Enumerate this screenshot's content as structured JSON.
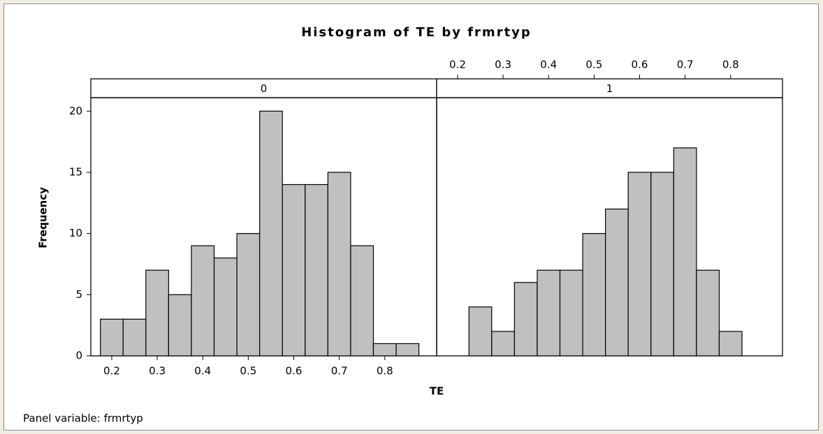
{
  "chart_data": {
    "type": "histogram",
    "title": "Histogram of TE by frmrtyp",
    "x_label": "TE",
    "y_label": "Frequency",
    "footnote": "Panel variable: frmrtyp",
    "bins": [
      0.175,
      0.225,
      0.275,
      0.325,
      0.375,
      0.425,
      0.475,
      0.525,
      0.575,
      0.625,
      0.675,
      0.725,
      0.775,
      0.825,
      0.875
    ],
    "color": "#c0c0c0",
    "xlim": [
      0.154,
      0.914
    ],
    "xticks": [
      0.2,
      0.3,
      0.4,
      0.5,
      0.6,
      0.7,
      0.8
    ],
    "ylim": [
      0,
      21.1
    ],
    "yticks": [
      0,
      5,
      10,
      15,
      20
    ],
    "panels": [
      {
        "label": "0",
        "values": [
          3,
          3,
          7,
          5,
          9,
          8,
          10,
          20,
          14,
          14,
          15,
          9,
          1,
          1
        ]
      },
      {
        "label": "1",
        "values": [
          0,
          4,
          2,
          6,
          7,
          7,
          10,
          12,
          15,
          15,
          17,
          7,
          2,
          0
        ]
      }
    ]
  }
}
